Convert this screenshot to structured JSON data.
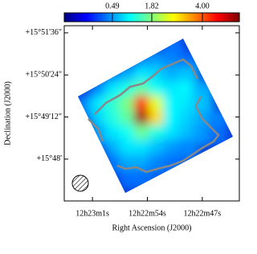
{
  "chart_data": {
    "type": "image",
    "xlabel": "Right Ascension (J2000)",
    "ylabel": "Declination (J2000)",
    "xlim": [
      185.7692,
      185.6761
    ],
    "ylim": [
      15.7801,
      15.8634
    ],
    "xticks": [
      {
        "value": 185.7542,
        "label": "12h23m1s"
      },
      {
        "value": 185.725,
        "label": "12h22m54s"
      },
      {
        "value": 185.6958,
        "label": "12h22m47s"
      }
    ],
    "yticks": [
      {
        "value": 15.86,
        "label": "+15°51'36\""
      },
      {
        "value": 15.84,
        "label": "+15°50'24\""
      },
      {
        "value": 15.82,
        "label": "+15°49'12\""
      },
      {
        "value": 15.8,
        "label": "+15°48'"
      }
    ],
    "colormap": "jet",
    "colorbar": {
      "clim": [
        -0.52,
        5.82
      ],
      "power": 0.75,
      "ticks": [
        0.49,
        1.82,
        {
          "value": 4,
          "label": "4.00"
        }
      ]
    },
    "z": [
      [
        null,
        null,
        null,
        null,
        null,
        null,
        null,
        null,
        null,
        null,
        null,
        null
      ],
      [
        null,
        null,
        null,
        null,
        null,
        null,
        null,
        0.3,
        null,
        null,
        null,
        null
      ],
      [
        null,
        null,
        null,
        null,
        null,
        0.4,
        0.5,
        0.4,
        0.3,
        null,
        null,
        null
      ],
      [
        null,
        null,
        null,
        0.3,
        0.6,
        0.9,
        0.8,
        0.6,
        0.7,
        null,
        null,
        null
      ],
      [
        null,
        null,
        0.4,
        0.9,
        1.2,
        1.6,
        1.1,
        0.9,
        1.0,
        0.6,
        null,
        null
      ],
      [
        null,
        0.4,
        0.9,
        1.3,
        1.8,
        4.5,
        2.5,
        1.0,
        0.9,
        0.7,
        null,
        null
      ],
      [
        null,
        null,
        0.8,
        1.2,
        1.6,
        5.5,
        3.0,
        1.0,
        0.8,
        0.6,
        0.4,
        null
      ],
      [
        null,
        null,
        0.5,
        0.9,
        1.1,
        1.7,
        1.2,
        0.9,
        0.7,
        0.5,
        0.3,
        null
      ],
      [
        null,
        null,
        null,
        0.6,
        0.9,
        0.9,
        0.7,
        0.5,
        0.4,
        null,
        null,
        null
      ],
      [
        null,
        null,
        null,
        0.3,
        0.6,
        0.6,
        0.4,
        0.3,
        null,
        null,
        null,
        null
      ],
      [
        null,
        null,
        null,
        null,
        0.3,
        0.3,
        null,
        null,
        null,
        null,
        null,
        null
      ],
      [
        null,
        null,
        null,
        null,
        null,
        null,
        null,
        null,
        null,
        null,
        null,
        null
      ]
    ]
  }
}
